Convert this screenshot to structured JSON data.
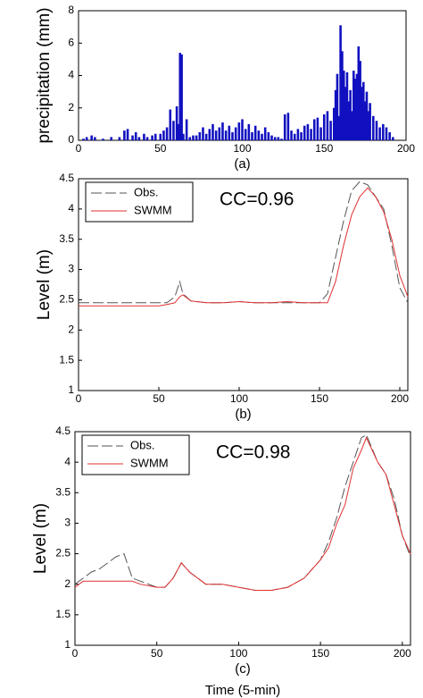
{
  "chart_data": [
    {
      "type": "bar",
      "ylabel": "precipitation (mm)",
      "caption": "(a)",
      "color": "#1010c0",
      "xlim": [
        0,
        200
      ],
      "xticks": [
        0,
        50,
        100,
        150,
        200
      ],
      "ylim": [
        0,
        8
      ],
      "yticks": [
        0,
        2,
        4,
        6,
        8
      ],
      "x": [
        3,
        5,
        8,
        10,
        15,
        20,
        25,
        28,
        30,
        33,
        35,
        37,
        40,
        42,
        45,
        47,
        50,
        52,
        54,
        56,
        58,
        60,
        61,
        62,
        63,
        64,
        66,
        68,
        70,
        72,
        74,
        76,
        78,
        80,
        82,
        84,
        86,
        88,
        90,
        92,
        94,
        96,
        98,
        100,
        102,
        104,
        106,
        108,
        110,
        112,
        114,
        116,
        118,
        120,
        122,
        124,
        126,
        128,
        130,
        132,
        134,
        136,
        138,
        140,
        142,
        144,
        146,
        148,
        150,
        152,
        154,
        156,
        157,
        158,
        159,
        160,
        161,
        162,
        163,
        164,
        165,
        166,
        167,
        168,
        169,
        170,
        171,
        172,
        173,
        174,
        175,
        176,
        177,
        178,
        180,
        182,
        184,
        186,
        188,
        190,
        192
      ],
      "values": [
        0.1,
        0.2,
        0.3,
        0.2,
        0.1,
        0.2,
        0.2,
        0.6,
        0.7,
        0.3,
        0.5,
        0.2,
        0.4,
        0.2,
        0.3,
        0.4,
        0.4,
        0.6,
        0.8,
        1.9,
        1.2,
        2.1,
        1.0,
        5.4,
        5.3,
        0.4,
        1.3,
        0.2,
        0.3,
        0.3,
        0.5,
        0.8,
        0.4,
        0.7,
        1.0,
        0.6,
        0.8,
        1.1,
        0.6,
        0.9,
        0.5,
        0.8,
        1.1,
        1.3,
        0.7,
        1.0,
        0.5,
        0.9,
        0.6,
        0.4,
        0.8,
        0.5,
        0.3,
        0.2,
        0.2,
        0.1,
        1.6,
        1.7,
        0.6,
        0.4,
        0.7,
        0.5,
        0.9,
        1.0,
        0.7,
        1.3,
        1.4,
        0.8,
        1.6,
        1.8,
        1.2,
        2.0,
        3.1,
        4.1,
        1.5,
        7.1,
        5.5,
        4.3,
        3.3,
        4.2,
        2.4,
        3.1,
        1.8,
        4.3,
        3.8,
        4.1,
        5.8,
        4.9,
        3.3,
        3.6,
        2.4,
        3.0,
        1.8,
        2.3,
        1.5,
        1.2,
        0.8,
        1.0,
        0.8,
        0.5,
        0.2
      ]
    },
    {
      "type": "line",
      "ylabel": "Level (m)",
      "caption": "(b)",
      "annotation": "CC=0.96",
      "xlim": [
        0,
        205
      ],
      "xticks": [
        0,
        50,
        100,
        150,
        200
      ],
      "ylim": [
        1,
        4.5
      ],
      "yticks": [
        1,
        1.5,
        2,
        2.5,
        3,
        3.5,
        4,
        4.5
      ],
      "x": [
        0,
        10,
        20,
        30,
        40,
        50,
        55,
        60,
        63,
        65,
        70,
        80,
        90,
        100,
        110,
        120,
        130,
        140,
        150,
        155,
        160,
        165,
        170,
        175,
        180,
        185,
        190,
        195,
        200,
        205
      ],
      "series": [
        {
          "name": "Obs.",
          "color": "#555555",
          "dash": true,
          "values": [
            2.45,
            2.45,
            2.45,
            2.45,
            2.45,
            2.45,
            2.45,
            2.55,
            2.8,
            2.6,
            2.48,
            2.45,
            2.45,
            2.47,
            2.45,
            2.45,
            2.45,
            2.45,
            2.45,
            2.6,
            3.2,
            3.8,
            4.3,
            4.45,
            4.4,
            4.2,
            4.0,
            3.4,
            2.7,
            2.45
          ]
        },
        {
          "name": "SWMM",
          "color": "#e03030",
          "dash": false,
          "values": [
            2.4,
            2.4,
            2.4,
            2.4,
            2.4,
            2.4,
            2.42,
            2.45,
            2.55,
            2.58,
            2.48,
            2.45,
            2.45,
            2.47,
            2.45,
            2.45,
            2.47,
            2.45,
            2.45,
            2.45,
            2.8,
            3.4,
            3.9,
            4.2,
            4.35,
            4.2,
            3.95,
            3.5,
            2.9,
            2.55
          ]
        }
      ]
    },
    {
      "type": "line",
      "ylabel": "Level (m)",
      "caption": "(c)",
      "xlabel": "Time (5-min)",
      "annotation": "CC=0.98",
      "xlim": [
        0,
        205
      ],
      "xticks": [
        0,
        50,
        100,
        150,
        200
      ],
      "ylim": [
        1,
        4.5
      ],
      "yticks": [
        1,
        1.5,
        2,
        2.5,
        3,
        3.5,
        4,
        4.5
      ],
      "x": [
        0,
        5,
        10,
        15,
        20,
        25,
        30,
        35,
        40,
        50,
        55,
        60,
        65,
        70,
        80,
        90,
        100,
        110,
        120,
        130,
        140,
        150,
        155,
        160,
        165,
        170,
        175,
        178,
        185,
        190,
        195,
        200,
        205
      ],
      "series": [
        {
          "name": "Obs.",
          "color": "#555555",
          "dash": true,
          "values": [
            2.0,
            2.1,
            2.2,
            2.25,
            2.35,
            2.45,
            2.5,
            2.1,
            2.05,
            1.95,
            1.95,
            2.1,
            2.35,
            2.2,
            2.0,
            2.0,
            1.95,
            1.9,
            1.9,
            1.95,
            2.1,
            2.4,
            2.7,
            3.1,
            3.6,
            4.0,
            4.4,
            4.45,
            4.0,
            3.8,
            3.4,
            2.8,
            2.45
          ]
        },
        {
          "name": "SWMM",
          "color": "#e03030",
          "dash": false,
          "values": [
            1.95,
            2.05,
            2.05,
            2.05,
            2.05,
            2.05,
            2.05,
            2.05,
            2.0,
            1.95,
            1.95,
            2.1,
            2.35,
            2.2,
            2.0,
            2.0,
            1.95,
            1.9,
            1.9,
            1.95,
            2.1,
            2.4,
            2.6,
            3.0,
            3.3,
            3.9,
            4.2,
            4.4,
            4.0,
            3.8,
            3.3,
            2.8,
            2.5
          ]
        }
      ]
    }
  ]
}
